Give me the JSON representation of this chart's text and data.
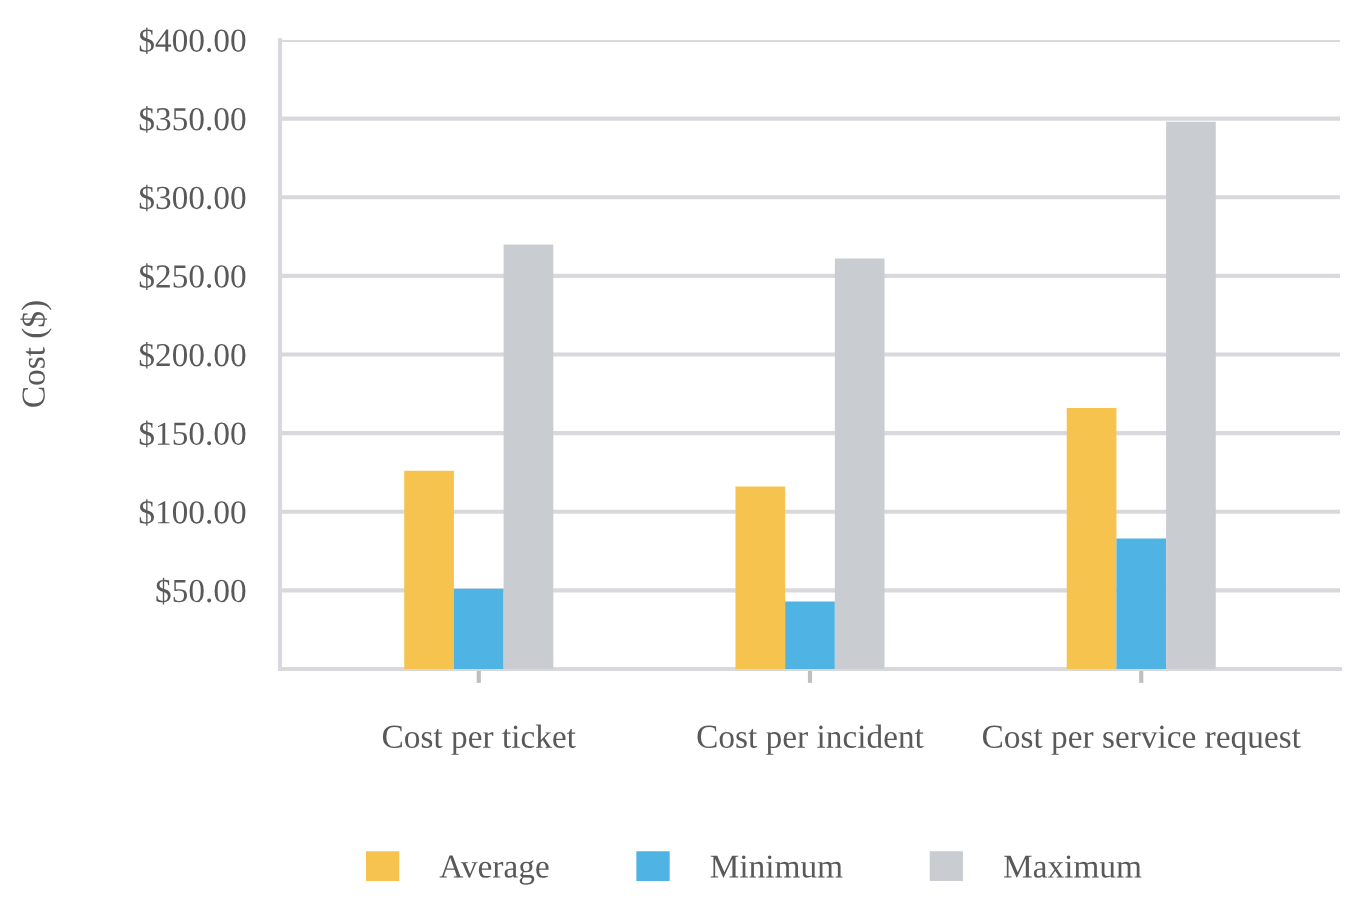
{
  "chart_data": {
    "type": "bar",
    "ylabel": "Cost ($)",
    "categories": [
      "Cost per ticket",
      "Cost per incident",
      "Cost per service request"
    ],
    "series": [
      {
        "name": "Average",
        "color": "#f7c34f",
        "values": [
          126,
          116,
          166
        ]
      },
      {
        "name": "Minimum",
        "color": "#4fb3e4",
        "values": [
          51,
          43,
          83
        ]
      },
      {
        "name": "Maximum",
        "color": "#c9cdd1",
        "values": [
          270,
          261,
          348
        ]
      }
    ],
    "ylim": [
      0,
      400
    ],
    "yticks": [
      {
        "value": 0,
        "label": null
      },
      {
        "value": 50,
        "label": "$50.00"
      },
      {
        "value": 100,
        "label": "$100.00"
      },
      {
        "value": 150,
        "label": "$150.00"
      },
      {
        "value": 200,
        "label": "$200.00"
      },
      {
        "value": 250,
        "label": "$250.00"
      },
      {
        "value": 300,
        "label": "$300.00"
      },
      {
        "value": 350,
        "label": "$350.00"
      },
      {
        "value": 400,
        "label": "$400.00"
      }
    ],
    "grid": "y",
    "legend": "bottom"
  }
}
